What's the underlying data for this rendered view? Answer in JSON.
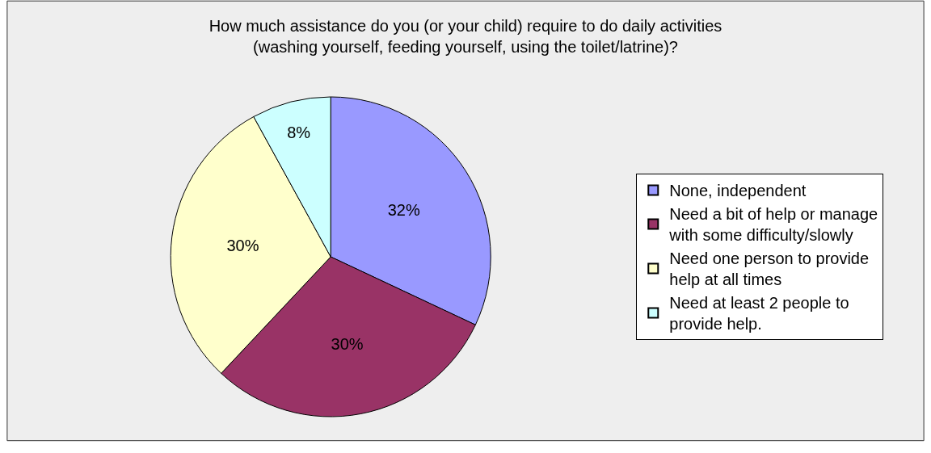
{
  "chart_data": {
    "type": "pie",
    "title": "How much assistance do you (or your child) require to do daily activities (washing yourself, feeding yourself, using the toilet/latrine)?",
    "categories": [
      "None, independent",
      "Need a bit of help or manage with some difficulty/slowly",
      "Need one person to provide help at all times",
      "Need at least 2 people to provide help."
    ],
    "values": [
      32,
      30,
      30,
      8
    ],
    "colors": [
      "#9999ff",
      "#993366",
      "#ffffcc",
      "#ccffff"
    ],
    "value_labels": [
      "32%",
      "30%",
      "30%",
      "8%"
    ],
    "legend": "right"
  }
}
